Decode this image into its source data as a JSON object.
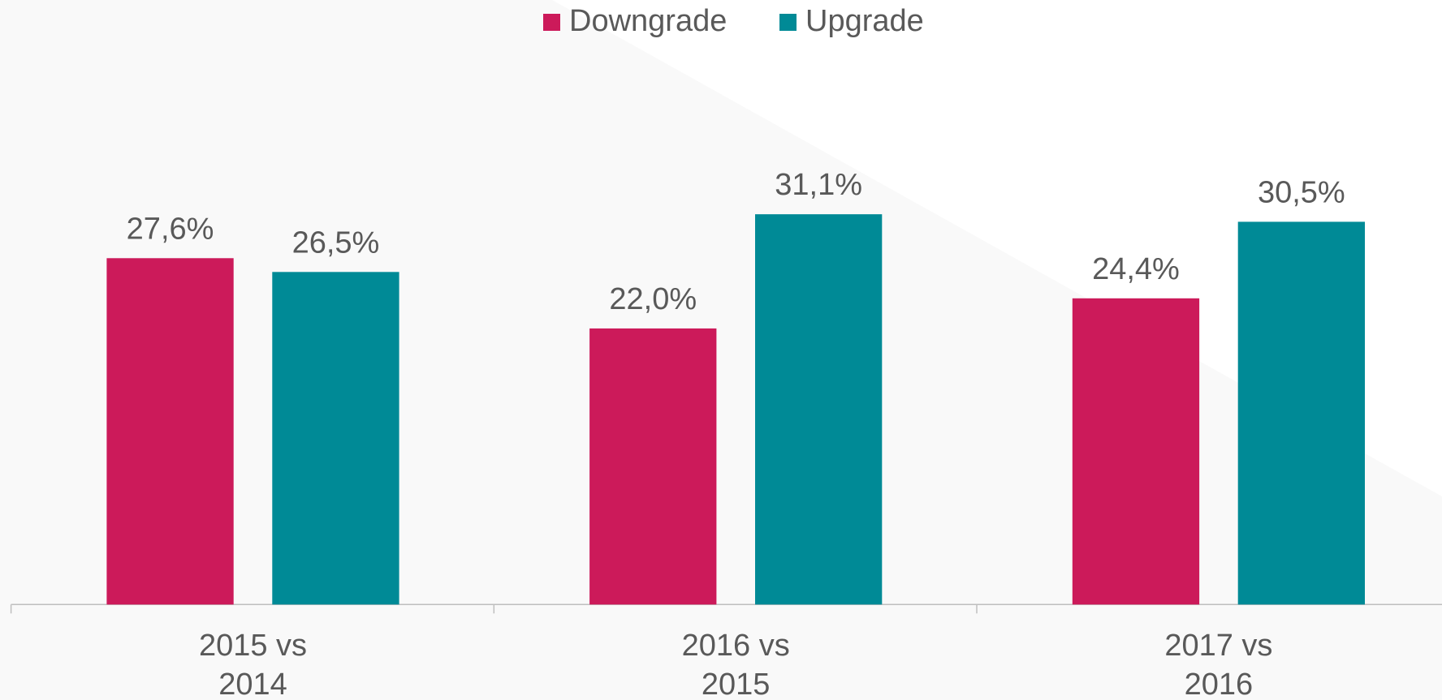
{
  "chart_data": {
    "type": "bar",
    "categories": [
      "2015 vs 2014",
      "2016 vs 2015",
      "2017 vs 2016"
    ],
    "series": [
      {
        "name": "Downgrade",
        "color": "#cc1a5a",
        "values": [
          27.6,
          22.0,
          24.4
        ],
        "value_labels": [
          "27,6%",
          "22,0%",
          "24,4%"
        ]
      },
      {
        "name": "Upgrade",
        "color": "#008a96",
        "values": [
          26.5,
          31.1,
          30.5
        ],
        "value_labels": [
          "26,5%",
          "31,1%",
          "30,5%"
        ]
      }
    ],
    "ylim": [
      0,
      35
    ],
    "legend": "top"
  }
}
